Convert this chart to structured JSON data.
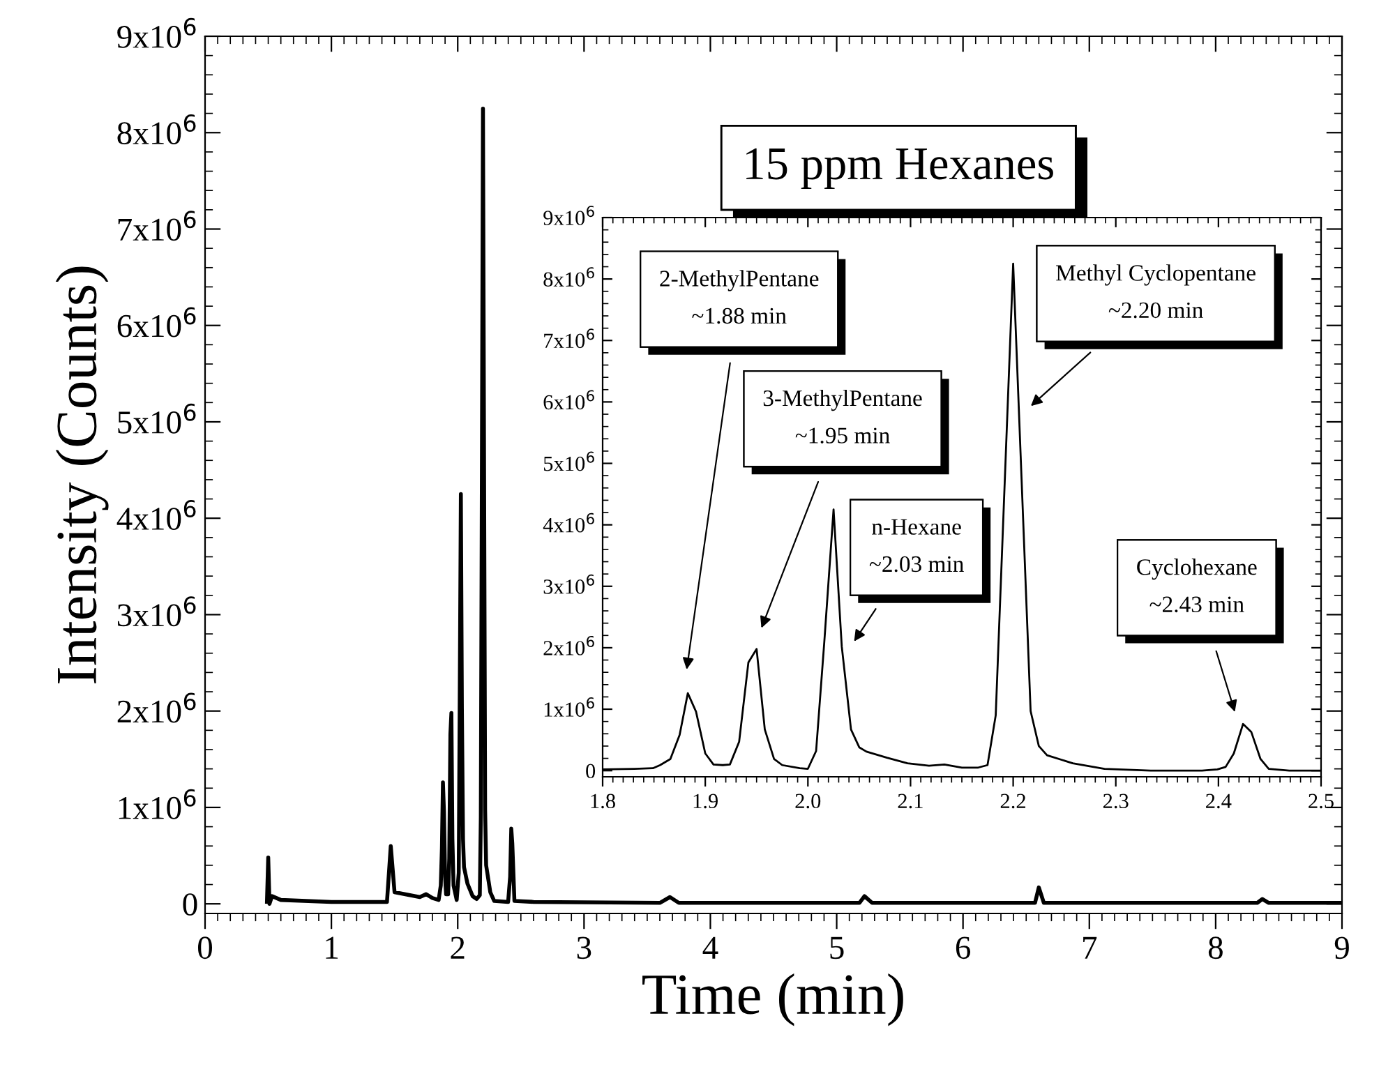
{
  "chart_data": [
    {
      "type": "line",
      "title": "15 ppm Hexanes",
      "xlabel": "Time (min)",
      "ylabel": "Intensity (Counts)",
      "xlim": [
        0,
        9
      ],
      "xticks": [
        0,
        1,
        2,
        3,
        4,
        5,
        6,
        7,
        8,
        9
      ],
      "ylim": [
        -100000,
        9000000
      ],
      "yticks": [
        0,
        {
          "value": 1000000,
          "label": "1x10$^{6}$"
        },
        {
          "value": 2000000,
          "label": "2x10$^{6}$"
        },
        {
          "value": 3000000,
          "label": "3x10$^{6}$"
        },
        {
          "value": 4000000,
          "label": "4x10$^{6}$"
        },
        {
          "value": 5000000,
          "label": "5x10$^{6}$"
        },
        {
          "value": 6000000,
          "label": "6x10$^{6}$"
        },
        {
          "value": 7000000,
          "label": "7x10$^{6}$"
        },
        {
          "value": 8000000,
          "label": "8x10$^{6}$"
        },
        {
          "value": 9000000,
          "label": "9x10$^{6}$"
        }
      ],
      "grid": false,
      "marker": "none",
      "line_style": "solid",
      "series": [
        {
          "color": "#000000",
          "x": [
            0.49,
            0.5,
            0.51,
            0.53,
            0.6,
            1.0,
            1.44,
            1.47,
            1.5,
            1.7,
            1.75,
            1.8,
            1.849,
            1.866,
            1.875,
            1.883,
            1.891,
            1.9,
            1.908,
            1.924,
            1.933,
            1.942,
            1.95,
            1.958,
            1.967,
            1.992,
            2.008,
            2.016,
            2.025,
            2.033,
            2.042,
            2.05,
            2.077,
            2.118,
            2.15,
            2.175,
            2.183,
            2.2,
            2.217,
            2.225,
            2.258,
            2.289,
            2.399,
            2.415,
            2.424,
            2.432,
            2.449,
            2.6,
            3.6,
            3.68,
            3.75,
            5.18,
            5.22,
            5.28,
            6.57,
            6.6,
            6.64,
            8.33,
            8.37,
            8.42,
            9.0
          ],
          "values": [
            20000.0,
            480000.0,
            0.0,
            80000.0,
            40000.0,
            20000.0,
            20000.0,
            600000.0,
            120000.0,
            70000.0,
            100000.0,
            60000.0,
            40000.0,
            190000.0,
            580000.0,
            1260000.0,
            960000.0,
            280000.0,
            100000.0,
            100000.0,
            470000.0,
            1760000.0,
            1980000.0,
            670000.0,
            190000.0,
            40000.0,
            320000.0,
            2100000.0,
            4250000.0,
            2020000.0,
            670000.0,
            380000.0,
            210000.0,
            80000.0,
            50000.0,
            90000.0,
            900000.0,
            8250000.0,
            970000.0,
            400000.0,
            120000.0,
            30000.0,
            20000.0,
            280000.0,
            780000.0,
            630000.0,
            30000.0,
            20000.0,
            10000.0,
            70000.0,
            10000.0,
            10000.0,
            80000.0,
            10000.0,
            10000.0,
            170000.0,
            10000.0,
            10000.0,
            50000.0,
            10000.0,
            10000.0
          ]
        }
      ]
    },
    {
      "type": "line",
      "xlim": [
        1.8,
        2.5
      ],
      "xticks": [
        1.8,
        1.9,
        {
          "value": 2.0,
          "label": "2.0"
        },
        2.1,
        2.2,
        2.3,
        2.4,
        2.5
      ],
      "ylim": [
        -100000,
        9000000
      ],
      "yticks": [
        0,
        {
          "value": 1000000,
          "label": "1x10$^{6}$"
        },
        {
          "value": 2000000,
          "label": "2x10$^{6}$"
        },
        {
          "value": 3000000,
          "label": "3x10$^{6}$"
        },
        {
          "value": 4000000,
          "label": "4x10$^{6}$"
        },
        {
          "value": 5000000,
          "label": "5x10$^{6}$"
        },
        {
          "value": 6000000,
          "label": "6x10$^{6}$"
        },
        {
          "value": 7000000,
          "label": "7x10$^{6}$"
        },
        {
          "value": 8000000,
          "label": "8x10$^{6}$"
        },
        {
          "value": 9000000,
          "label": "9x10$^{6}$"
        }
      ],
      "grid": false,
      "marker": "none",
      "line_style": "solid",
      "annotations": [
        "2-MethylPentane\n~1.88 min",
        "3-MethylPentane\n~1.95 min",
        "n-Hexane\n~2.03 min",
        "Methyl Cyclopentane\n~2.20 min",
        "Cyclohexane\n~2.43 min"
      ],
      "series": [
        {
          "color": "#000000",
          "x": [
            1.8,
            1.831,
            1.849,
            1.856,
            1.866,
            1.875,
            1.883,
            1.891,
            1.9,
            1.908,
            1.917,
            1.924,
            1.933,
            1.942,
            1.95,
            1.958,
            1.967,
            1.975,
            1.992,
            2.0,
            2.008,
            2.016,
            2.025,
            2.033,
            2.042,
            2.05,
            2.057,
            2.077,
            2.097,
            2.118,
            2.133,
            2.15,
            2.166,
            2.175,
            2.183,
            2.2,
            2.217,
            2.225,
            2.233,
            2.258,
            2.289,
            2.334,
            2.384,
            2.399,
            2.407,
            2.415,
            2.424,
            2.432,
            2.441,
            2.449,
            2.469,
            2.5
          ],
          "values": [
            20000.0,
            30000.0,
            40000.0,
            90000.0,
            190000.0,
            580000.0,
            1260000.0,
            960000.0,
            280000.0,
            100000.0,
            90000.0,
            100000.0,
            470000.0,
            1760000.0,
            1980000.0,
            670000.0,
            190000.0,
            90000.0,
            40000.0,
            30000.0,
            320000.0,
            2100000.0,
            4250000.0,
            2020000.0,
            670000.0,
            380000.0,
            310000.0,
            210000.0,
            120000.0,
            80000.0,
            100000.0,
            50000.0,
            50000.0,
            90000.0,
            900000.0,
            8250000.0,
            970000.0,
            400000.0,
            250000.0,
            120000.0,
            30000.0,
            0.0,
            0.0,
            20000.0,
            60000.0,
            280000.0,
            760000.0,
            630000.0,
            190000.0,
            30000.0,
            0.0,
            0.0
          ]
        }
      ]
    }
  ]
}
